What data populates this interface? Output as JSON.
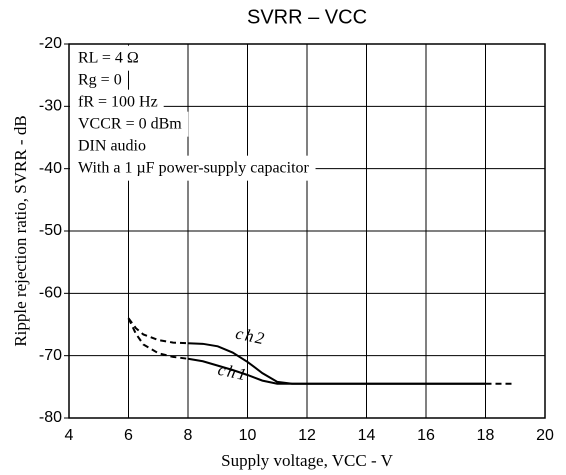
{
  "chart_data": {
    "type": "line",
    "title": "SVRR  –  VCC",
    "xlabel": "Supply voltage, VCC - V",
    "ylabel": "Ripple rejection ratio, SVRR - dB",
    "annotations": [
      "RL = 4 Ω",
      "Rg = 0",
      "fR = 100 Hz",
      "VCCR = 0 dBm",
      "DIN audio",
      "With a 1 µF power-supply capacitor"
    ],
    "xlim": [
      4,
      20
    ],
    "xticks": [
      4,
      6,
      8,
      10,
      12,
      14,
      16,
      18,
      20
    ],
    "ylim": [
      -80,
      -20
    ],
    "yticks": [
      -80,
      -70,
      -60,
      -50,
      -40,
      -30,
      -20
    ],
    "grid": true,
    "series": [
      {
        "name": "ch2",
        "color": "#000000",
        "x": [
          8,
          8.5,
          9,
          9.5,
          10,
          10.5,
          11,
          11.5,
          12,
          14,
          16,
          18
        ],
        "values": [
          -68,
          -68.1,
          -68.5,
          -69.5,
          -71,
          -72.8,
          -74.2,
          -74.5,
          -74.5,
          -74.5,
          -74.5,
          -74.5
        ]
      },
      {
        "name": "ch1",
        "color": "#000000",
        "x": [
          8,
          8.5,
          9,
          9.5,
          10,
          10.5,
          11,
          11.5,
          12,
          14,
          16,
          18
        ],
        "values": [
          -70.5,
          -70.9,
          -71.6,
          -72.3,
          -73.1,
          -74,
          -74.5,
          -74.5,
          -74.5,
          -74.5,
          -74.5,
          -74.5
        ]
      },
      {
        "color": "#000000",
        "dash": true,
        "x": [
          6,
          6.25,
          6.5,
          7,
          7.5,
          8
        ],
        "values": [
          -64,
          -65.6,
          -66.6,
          -67.5,
          -67.9,
          -68
        ]
      },
      {
        "color": "#000000",
        "dash": true,
        "x": [
          6,
          6.25,
          6.5,
          7,
          7.5,
          8
        ],
        "values": [
          -64,
          -66.5,
          -68.2,
          -69.6,
          -70.2,
          -70.5
        ]
      },
      {
        "color": "#000000",
        "dash": true,
        "x": [
          18,
          19
        ],
        "values": [
          -74.5,
          -74.5
        ]
      }
    ]
  }
}
